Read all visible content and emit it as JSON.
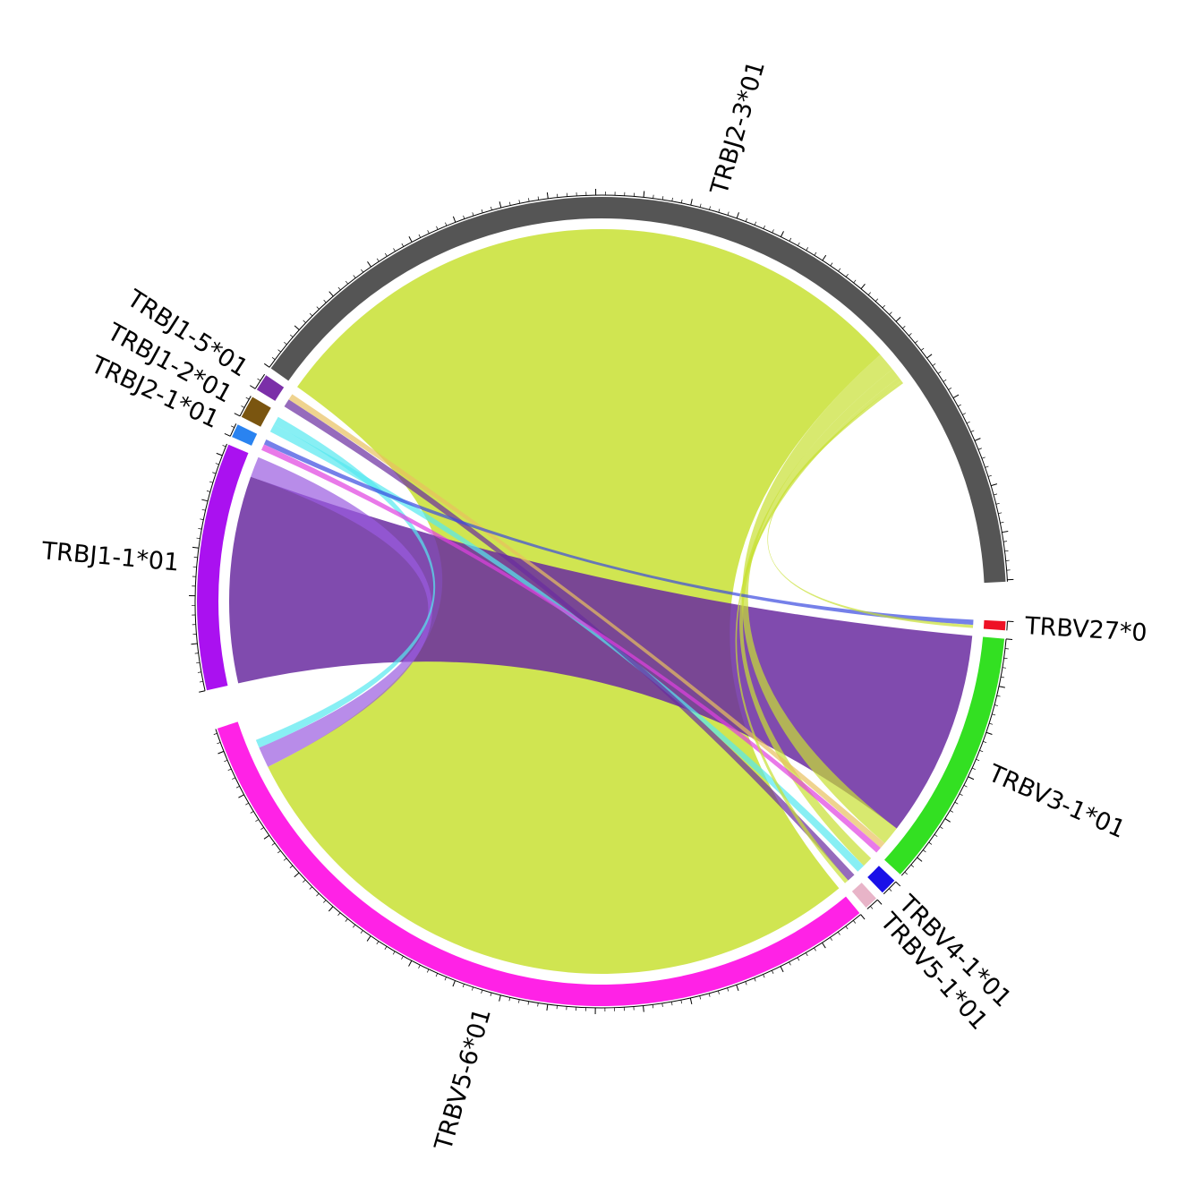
{
  "chart_data": {
    "type": "chord",
    "title": "",
    "segments": [
      {
        "name": "TRBJ2-3*01",
        "value": 880,
        "color": "#555555"
      },
      {
        "name": "TRBJ1-5*01",
        "value": 15,
        "color": "#7b2fa8"
      },
      {
        "name": "TRBJ1-2*01",
        "value": 20,
        "color": "#7a5510"
      },
      {
        "name": "TRBJ2-1*01",
        "value": 12,
        "color": "#2a83f0"
      },
      {
        "name": "TRBJ1-1*01",
        "value": 220,
        "color": "#aa11f0"
      },
      {
        "name": "TRBV5-6*01",
        "value": 690,
        "color": "#ff22e6"
      },
      {
        "name": "TRBV5-1*01",
        "value": 12,
        "color": "#e8b4c8"
      },
      {
        "name": "TRBV4-1*01",
        "value": 15,
        "color": "#1a10e8"
      },
      {
        "name": "TRBV3-1*01",
        "value": 230,
        "color": "#33e022"
      },
      {
        "name": "TRBV27*0",
        "value": 8,
        "color": "#ee1125"
      }
    ],
    "links": [
      {
        "source": "TRBJ2-3*01",
        "target": "TRBV5-6*01",
        "value": 640,
        "color": "#c8e032"
      },
      {
        "source": "TRBJ1-1*01",
        "target": "TRBV3-1*01",
        "value": 200,
        "color": "#6a2ca0"
      },
      {
        "source": "TRBJ2-3*01",
        "target": "TRBV3-1*01",
        "value": 18,
        "color": "#c8e032"
      },
      {
        "source": "TRBJ1-1*01",
        "target": "TRBV5-6*01",
        "value": 20,
        "color": "#9a5be0"
      },
      {
        "source": "TRBJ2-3*01",
        "target": "TRBV4-1*01",
        "value": 10,
        "color": "#c8e032"
      },
      {
        "source": "TRBJ1-2*01",
        "target": "TRBV4-1*01",
        "value": 8,
        "color": "#55e8f0"
      },
      {
        "source": "TRBJ1-2*01",
        "target": "TRBV5-6*01",
        "value": 8,
        "color": "#55e8f0"
      },
      {
        "source": "TRBJ1-5*01",
        "target": "TRBV5-1*01",
        "value": 8,
        "color": "#6a2ca0"
      },
      {
        "source": "TRBJ1-5*01",
        "target": "TRBV3-1*01",
        "value": 6,
        "color": "#e8c060"
      },
      {
        "source": "TRBJ2-1*01",
        "target": "TRBV3-1*01",
        "value": 6,
        "color": "#e040e0"
      },
      {
        "source": "TRBJ2-1*01",
        "target": "TRBV27*0",
        "value": 5,
        "color": "#3a4ae0"
      },
      {
        "source": "TRBJ2-3*01",
        "target": "TRBV27*0",
        "value": 3,
        "color": "#c8e032"
      },
      {
        "source": "TRBJ2-3*01",
        "target": "TRBV5-1*01",
        "value": 4,
        "color": "#c8e032"
      }
    ]
  }
}
